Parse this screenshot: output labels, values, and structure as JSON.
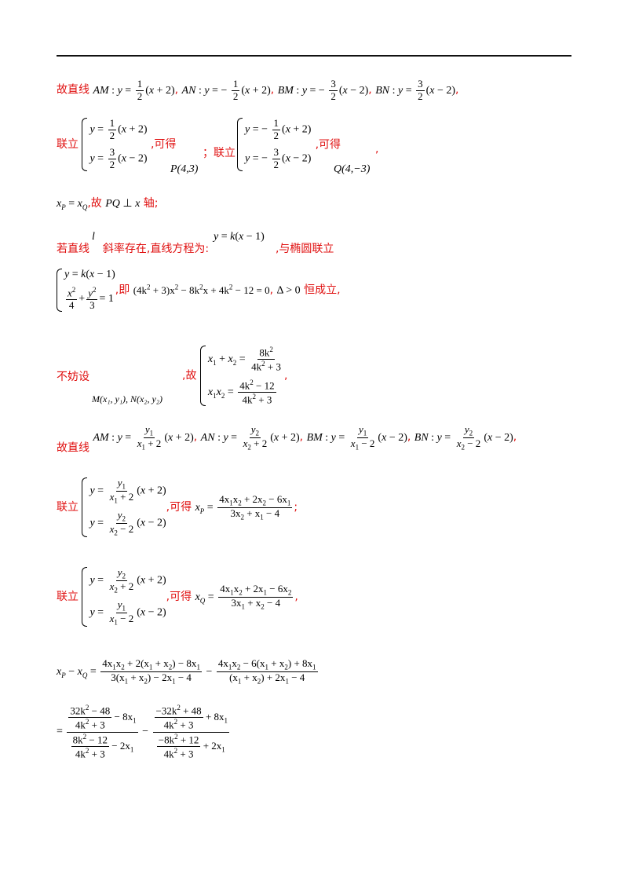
{
  "lines": {
    "l1_prefix": "故直线",
    "l2_lianli": "联立",
    "l2_kede": ",可得",
    "l2_P": "P(4,3)",
    "l2_semi": "；联立",
    "l2_kede2": ",可得",
    "l2_Q": "Q(4,−3)",
    "l2_end": ",",
    "l3_text": ",故",
    "l3_axis": "轴;",
    "l4_a": "若直线",
    "l4_l": "l",
    "l4_b": "斜率存在,直线方程为:",
    "l4_c": ",与椭圆联立",
    "l5_ji": ",即",
    "l5_heng": "恒成立,",
    "l6_bufang": "不妨设",
    "l6_gu": ",故",
    "l6_MN": "M(x₁, y₁), N(x₂, y₂)",
    "l7_prefix": "故直线",
    "l8_lianli": "联立",
    "l8_kede": ",可得",
    "l9_lianli": "联立",
    "l9_kede": ",可得"
  }
}
